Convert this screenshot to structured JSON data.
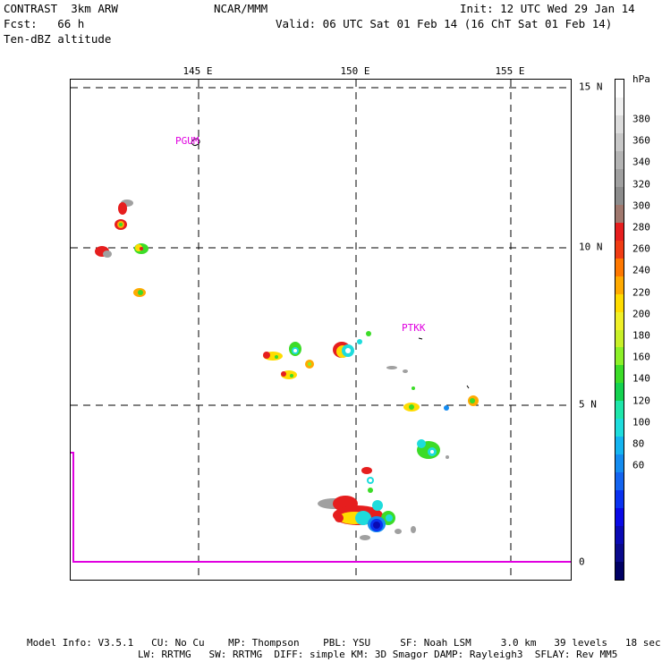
{
  "header": {
    "left_line1": "CONTRAST  3km ARW",
    "left_line2": "Fcst:   66 h",
    "left_line3": "Ten-dBZ altitude",
    "center": "NCAR/MMM",
    "right_line1": "Init: 12 UTC Wed 29 Jan 14",
    "right_line2": "Valid: 06 UTC Sat 01 Feb 14 (16 ChT Sat 01 Feb 14)"
  },
  "map": {
    "lon_labels": [
      "145 E",
      "150 E",
      "155 E"
    ],
    "lat_labels": [
      "15 N",
      "10 N",
      "5 N",
      "0"
    ],
    "stations": [
      "PGUM",
      "PTKK"
    ]
  },
  "colorbar": {
    "unit": "hPa",
    "labels": [
      "380",
      "360",
      "340",
      "320",
      "300",
      "280",
      "260",
      "240",
      "220",
      "200",
      "180",
      "160",
      "140",
      "120",
      "100",
      "80",
      "60"
    ],
    "colors": [
      "#ffffff",
      "#f0f0f0",
      "#dcdcdc",
      "#c8c8c8",
      "#b4b4b4",
      "#a0a0a0",
      "#8c8c8c",
      "#a0786e",
      "#e61e1e",
      "#f03c14",
      "#ff7800",
      "#ffaa00",
      "#ffdc00",
      "#f0f028",
      "#c8f028",
      "#8cf028",
      "#3cdc28",
      "#14d250",
      "#1ee6aa",
      "#1edcdc",
      "#14b4f0",
      "#148cf0",
      "#1464f0",
      "#0a32f0",
      "#0a0ae6",
      "#0a0ab4",
      "#0a0a8c",
      "#000064"
    ]
  },
  "footer": {
    "line1": "Model Info: V3.5.1   CU: No Cu    MP: Thompson    PBL: YSU     SF: Noah LSM     3.0 km   39 levels   18 sec",
    "line2": "LW: RRTMG   SW: RRTMG  DIFF: simple KM: 3D Smagor DAMP: Rayleigh3  SFLAY: Rev MM5"
  }
}
